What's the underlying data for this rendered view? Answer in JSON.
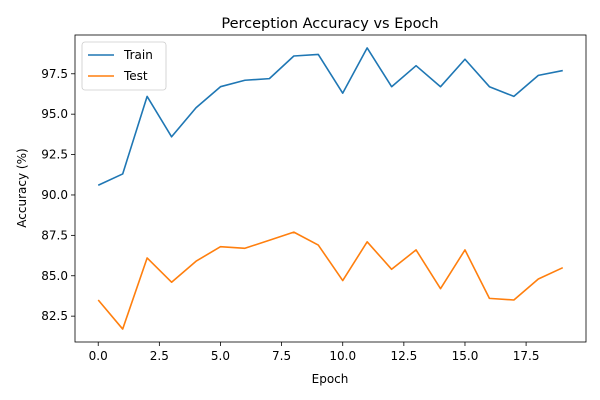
{
  "chart_data": {
    "type": "line",
    "title": "Perception Accuracy vs Epoch",
    "xlabel": "Epoch",
    "ylabel": "Accuracy (%)",
    "xlim": [
      -0.95,
      19.95
    ],
    "ylim": [
      80.9,
      99.9
    ],
    "xticks": [
      0.0,
      2.5,
      5.0,
      7.5,
      10.0,
      12.5,
      15.0,
      17.5
    ],
    "xtick_labels": [
      "0.0",
      "2.5",
      "5.0",
      "7.5",
      "10.0",
      "12.5",
      "15.0",
      "17.5"
    ],
    "yticks": [
      82.5,
      85.0,
      87.5,
      90.0,
      92.5,
      95.0,
      97.5
    ],
    "ytick_labels": [
      "82.5",
      "85.0",
      "87.5",
      "90.0",
      "92.5",
      "95.0",
      "97.5"
    ],
    "grid": false,
    "legend_position": "top-left",
    "x": [
      0,
      1,
      2,
      3,
      4,
      5,
      6,
      7,
      8,
      9,
      10,
      11,
      12,
      13,
      14,
      15,
      16,
      17,
      18,
      19
    ],
    "series": [
      {
        "name": "Train",
        "color": "#1f77b4",
        "values": [
          90.6,
          91.3,
          96.1,
          93.6,
          95.4,
          96.7,
          97.1,
          97.2,
          98.6,
          98.7,
          96.3,
          99.1,
          96.7,
          98.0,
          96.7,
          98.4,
          96.7,
          96.1,
          97.4,
          97.7
        ]
      },
      {
        "name": "Test",
        "color": "#ff7f0e",
        "values": [
          83.5,
          81.7,
          86.1,
          84.6,
          85.9,
          86.8,
          86.7,
          87.2,
          87.7,
          86.9,
          84.7,
          87.1,
          85.4,
          86.6,
          84.2,
          86.6,
          83.6,
          83.5,
          84.8,
          85.5
        ]
      }
    ]
  }
}
